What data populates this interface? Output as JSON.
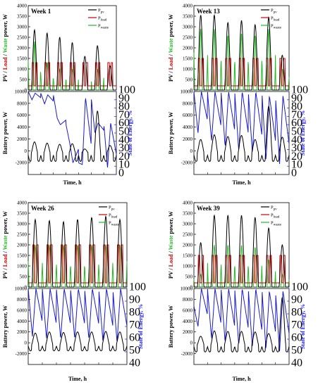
{
  "figure": {
    "x_axis_label": "Time, h",
    "power_axis_label_parts": [
      {
        "text": "PV",
        "color": "#000000"
      },
      {
        "text": " / ",
        "color": "#000000"
      },
      {
        "text": "Load",
        "color": "#cc0000"
      },
      {
        "text": " / ",
        "color": "#000000"
      },
      {
        "text": "Waste",
        "color": "#22bb22"
      },
      {
        "text": " power, W",
        "color": "#000000"
      }
    ],
    "battery_axis_label": "Battery power, W",
    "soe_axis_label": "State of Energy, %",
    "legend": [
      {
        "main": "P",
        "sub": "pv",
        "color": "#000000"
      },
      {
        "main": "P",
        "sub": "load",
        "color": "#cc0000"
      },
      {
        "main": "P",
        "sub": "waste",
        "color": "#22bb22"
      }
    ],
    "colors": {
      "pv": "#000000",
      "load": "#cc0000",
      "waste": "#22bb22",
      "battery": "#000000",
      "soe": "#1a1acc",
      "soe_axis": "#1a1aff"
    }
  },
  "chart_data": [
    {
      "type": "line",
      "title": "Week 1",
      "top_ylim": [
        0,
        4000
      ],
      "top_yticks": [
        0,
        500,
        1000,
        1500,
        2000,
        2500,
        3000,
        3500,
        4000
      ],
      "bottom_ylim": [
        -4000,
        10000
      ],
      "bottom_yticks": [
        -2000,
        0,
        2000,
        4000,
        6000,
        8000,
        10000
      ],
      "soe_ylim": [
        0,
        100
      ],
      "soe_yticks": [
        0,
        10,
        20,
        30,
        40,
        50,
        60,
        70,
        80,
        90,
        100
      ],
      "pv_peaks": [
        2850,
        2700,
        2500,
        2250,
        1600,
        2100,
        1150
      ],
      "load_level": 1300,
      "waste_peaks": [
        2300,
        1300,
        1000,
        1000,
        0,
        1000,
        0
      ],
      "battery_peaks": [
        1800,
        1600,
        1400,
        1500,
        600,
        7000,
        1200
      ],
      "battery_min": -1800,
      "soe_high": [
        100,
        98,
        96,
        60,
        14,
        93,
        62
      ],
      "soe_low": [
        90,
        85,
        68,
        38,
        12,
        50,
        8
      ]
    },
    {
      "type": "line",
      "title": "Week 13",
      "top_ylim": [
        0,
        4000
      ],
      "top_yticks": [
        0,
        500,
        1000,
        1500,
        2000,
        2500,
        3000,
        3500,
        4000
      ],
      "bottom_ylim": [
        -4000,
        10000
      ],
      "bottom_yticks": [
        -2000,
        0,
        2000,
        4000,
        6000,
        8000,
        10000
      ],
      "soe_ylim": [
        0,
        100
      ],
      "soe_yticks": [
        0,
        10,
        20,
        30,
        40,
        50,
        60,
        70,
        80,
        90,
        100
      ],
      "pv_peaks": [
        3550,
        3550,
        3200,
        3300,
        3100,
        3450,
        1650
      ],
      "load_level": 1500,
      "waste_peaks": [
        2900,
        2900,
        2600,
        2700,
        2600,
        2900,
        1000
      ],
      "battery_peaks": [
        2200,
        3000,
        2700,
        2900,
        2200,
        7800,
        2600
      ],
      "battery_min": -1800,
      "soe_high": [
        100,
        100,
        100,
        100,
        100,
        100,
        95
      ],
      "soe_low": [
        50,
        40,
        33,
        28,
        25,
        17,
        12
      ]
    },
    {
      "type": "line",
      "title": "Week 26",
      "top_ylim": [
        0,
        4000
      ],
      "top_yticks": [
        0,
        500,
        1000,
        1500,
        2000,
        2500,
        3000,
        3500,
        4000
      ],
      "bottom_ylim": [
        -4000,
        10000
      ],
      "bottom_yticks": [
        -2000,
        0,
        2000,
        4000,
        6000,
        8000,
        10000
      ],
      "soe_ylim": [
        40,
        100
      ],
      "soe_yticks": [
        40,
        50,
        60,
        70,
        80,
        90,
        100
      ],
      "pv_peaks": [
        3200,
        3150,
        3100,
        3200,
        3300,
        3350,
        3200
      ],
      "load_level": 2000,
      "waste_peaks": [
        2000,
        2000,
        2000,
        2000,
        2000,
        2000,
        2000
      ],
      "battery_peaks": [
        2100,
        2300,
        2200,
        2300,
        2300,
        2400,
        2300
      ],
      "battery_min": -1500,
      "soe_high": [
        100,
        100,
        100,
        100,
        100,
        100,
        100
      ],
      "soe_low": [
        62,
        60,
        60,
        60,
        60,
        58,
        58
      ]
    },
    {
      "type": "line",
      "title": "Week 39",
      "top_ylim": [
        0,
        4000
      ],
      "top_yticks": [
        0,
        500,
        1000,
        1500,
        2000,
        2500,
        3000,
        3500,
        4000
      ],
      "bottom_ylim": [
        -4000,
        10000
      ],
      "bottom_yticks": [
        -2000,
        0,
        2000,
        4000,
        6000,
        8000,
        10000
      ],
      "soe_ylim": [
        40,
        100
      ],
      "soe_yticks": [
        40,
        50,
        60,
        70,
        80,
        90,
        100
      ],
      "pv_peaks": [
        2100,
        3400,
        3400,
        3400,
        3300,
        2800,
        2000
      ],
      "load_level": 1500,
      "waste_peaks": [
        600,
        2000,
        2000,
        2000,
        1900,
        1300,
        600
      ],
      "battery_peaks": [
        1500,
        2500,
        2400,
        2400,
        2300,
        2000,
        8600
      ],
      "battery_min": -1700,
      "soe_high": [
        86,
        100,
        100,
        100,
        100,
        100,
        98
      ],
      "soe_low": [
        70,
        60,
        57,
        55,
        53,
        52,
        50
      ]
    }
  ]
}
